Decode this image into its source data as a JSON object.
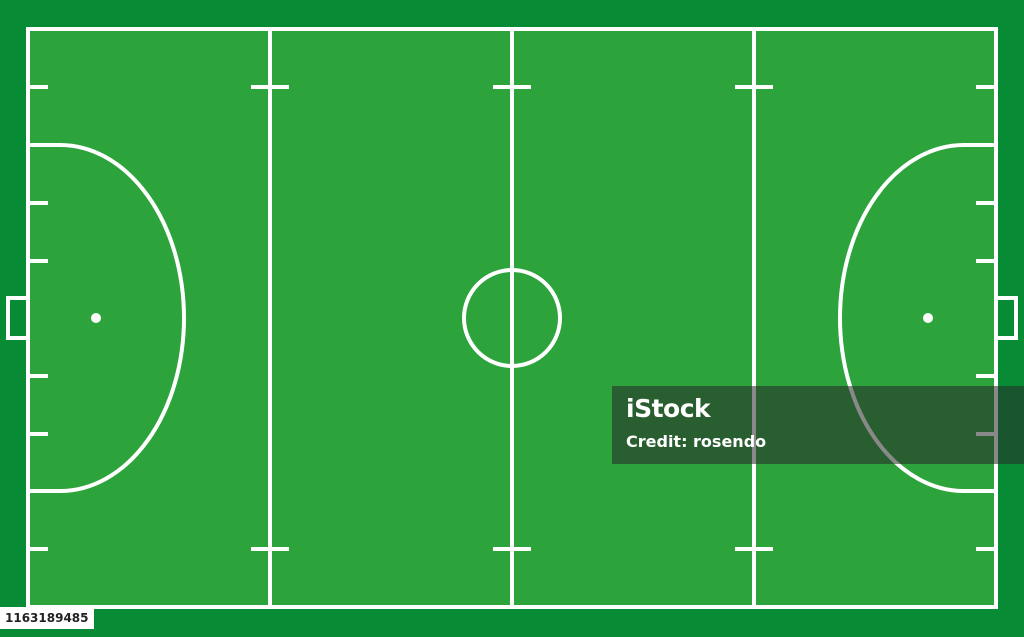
{
  "diagram": {
    "subject": "field hockey pitch top view",
    "colors": {
      "surround": "#078c35",
      "pitch": "#2ca33b",
      "lines": "#ffffff"
    }
  },
  "watermark": {
    "logo": "iStock",
    "credit": "Credit: rosendo"
  },
  "stock_id": "1163189485"
}
